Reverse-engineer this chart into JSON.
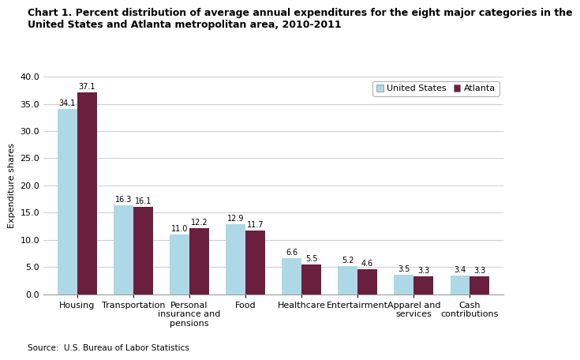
{
  "title_line1": "Chart 1. Percent distribution of average annual expenditures for the eight major categories in the",
  "title_line2": "United States and Atlanta metropolitan area, 2010-2011",
  "categories": [
    "Housing",
    "Transportation",
    "Personal\ninsurance and\npensions",
    "Food",
    "Healthcare",
    "Entertairment",
    "Apparel and\nservices",
    "Cash\ncontributions"
  ],
  "us_values": [
    34.1,
    16.3,
    11.0,
    12.9,
    6.6,
    5.2,
    3.5,
    3.4
  ],
  "atl_values": [
    37.1,
    16.1,
    12.2,
    11.7,
    5.5,
    4.6,
    3.3,
    3.3
  ],
  "us_color": "#ADD8E6",
  "atl_color": "#6B1F3E",
  "ylabel": "Expenditure shares",
  "ylim": [
    0,
    40
  ],
  "yticks": [
    0.0,
    5.0,
    10.0,
    15.0,
    20.0,
    25.0,
    30.0,
    35.0,
    40.0
  ],
  "legend_us": "United States",
  "legend_atl": "Atlanta",
  "source": "Source:  U.S. Bureau of Labor Statistics",
  "bar_width": 0.35,
  "title_fontsize": 9.0,
  "label_fontsize": 8.0,
  "tick_fontsize": 8.0,
  "value_fontsize": 7.0,
  "source_fontsize": 7.5
}
